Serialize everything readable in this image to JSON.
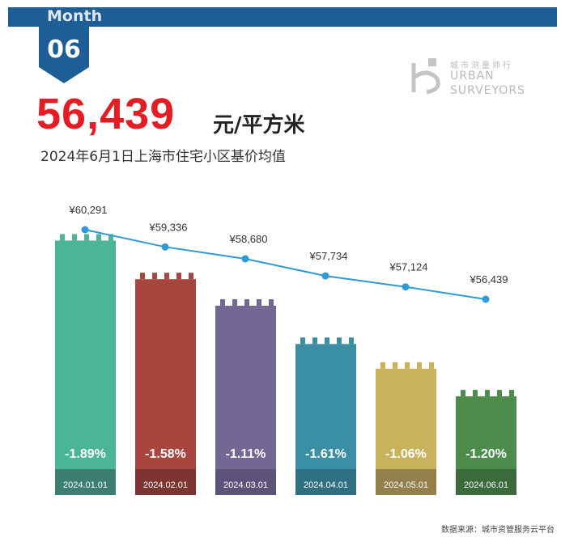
{
  "header": {
    "month_label": "Month",
    "month_number": "06",
    "headline_price": "56,439",
    "headline_unit": "元/平方米",
    "subtitle": "2024年6月1日上海市住宅小区基价均值",
    "bar_color": "#1d5e96"
  },
  "logo": {
    "cn_text": "城市测量师行",
    "en_line1": "URBAN",
    "en_line2": "SURVEYORS"
  },
  "source": "数据来源：城市资管服务云平台",
  "chart_data": {
    "type": "bar",
    "categories": [
      "2024.01.01",
      "2024.02.01",
      "2024.03.01",
      "2024.04.01",
      "2024.05.01",
      "2024.06.01"
    ],
    "series": [
      {
        "values": [
          60291,
          59336,
          58680,
          57734,
          57124,
          56439
        ],
        "labels": [
          "¥60,291",
          "¥59,336",
          "¥58,680",
          "¥57,734",
          "¥57,124",
          "¥56,439"
        ]
      }
    ],
    "changes": [
      "-1.89%",
      "-1.58%",
      "-1.11%",
      "-1.61%",
      "-1.06%",
      "-1.20%"
    ],
    "bar_colors": [
      "#4bb598",
      "#a8453f",
      "#736794",
      "#3b8fa5",
      "#c9b25c",
      "#4d8c4c"
    ],
    "label_colors": [
      "#3c7f72",
      "#7d3532",
      "#5d537a",
      "#2f6f82",
      "#93804a",
      "#3b6b3a"
    ],
    "line_color": "#2f9ad6",
    "ylim": [
      54000,
      61000
    ]
  }
}
